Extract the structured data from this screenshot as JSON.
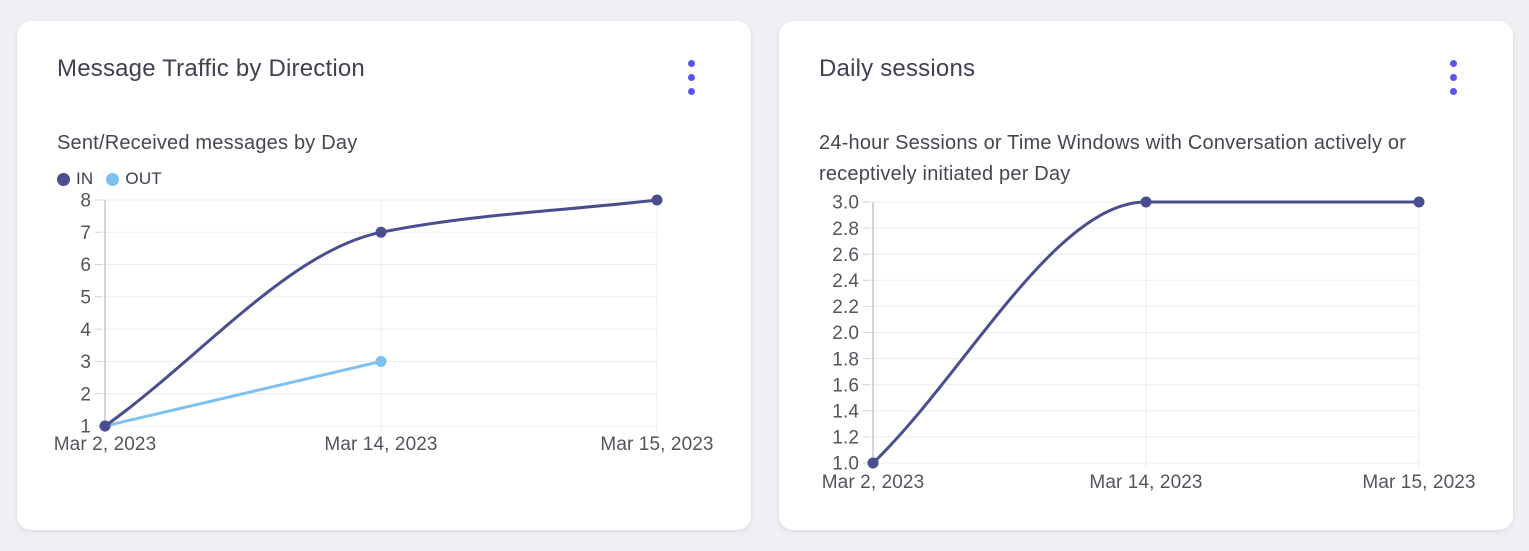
{
  "page": {
    "background": "#eff0f4",
    "accent": "#5b53ee"
  },
  "cards": [
    {
      "title": "Message Traffic by Direction",
      "subtitle": "Sent/Received messages by Day",
      "menu_icon": "kebab-menu-icon"
    },
    {
      "title": "Daily sessions",
      "subtitle": "24-hour Sessions or Time Windows with Conversation actively or receptively initiated per Day",
      "menu_icon": "kebab-menu-icon"
    }
  ],
  "chart_data": [
    {
      "type": "line",
      "title": "Message Traffic by Direction",
      "subtitle": "Sent/Received messages by Day",
      "categories": [
        "Mar 2, 2023",
        "Mar 14, 2023",
        "Mar 15, 2023"
      ],
      "series": [
        {
          "name": "IN",
          "values": [
            1,
            7,
            8
          ],
          "color": "#4b4e8e"
        },
        {
          "name": "OUT",
          "values": [
            1,
            3,
            null
          ],
          "color": "#7ec1f0"
        }
      ],
      "ylim": [
        1,
        8
      ],
      "y_tick_step": 1,
      "y_tick_decimals": 0,
      "grid": true,
      "curve": "monotone",
      "show_legend": true,
      "legend_position": "top-left",
      "xlabel": "",
      "ylabel": "",
      "grid_color": "#ececf0",
      "axis_color": "#a9aab2",
      "tick_color": "#d2d3d9"
    },
    {
      "type": "line",
      "title": "Daily sessions",
      "subtitle": "24-hour Sessions or Time Windows with Conversation actively or receptively initiated per Day",
      "categories": [
        "Mar 2, 2023",
        "Mar 14, 2023",
        "Mar 15, 2023"
      ],
      "series": [
        {
          "name": "Daily sessions",
          "values": [
            1.0,
            3.0,
            3.0
          ],
          "color": "#4b4e8e"
        }
      ],
      "ylim": [
        1.0,
        3.0
      ],
      "y_tick_step": 0.2,
      "y_tick_decimals": 1,
      "grid": true,
      "curve": "monotone",
      "show_legend": false,
      "xlabel": "",
      "ylabel": "",
      "grid_color": "#ececf0",
      "axis_color": "#a9aab2",
      "tick_color": "#d2d3d9"
    }
  ]
}
